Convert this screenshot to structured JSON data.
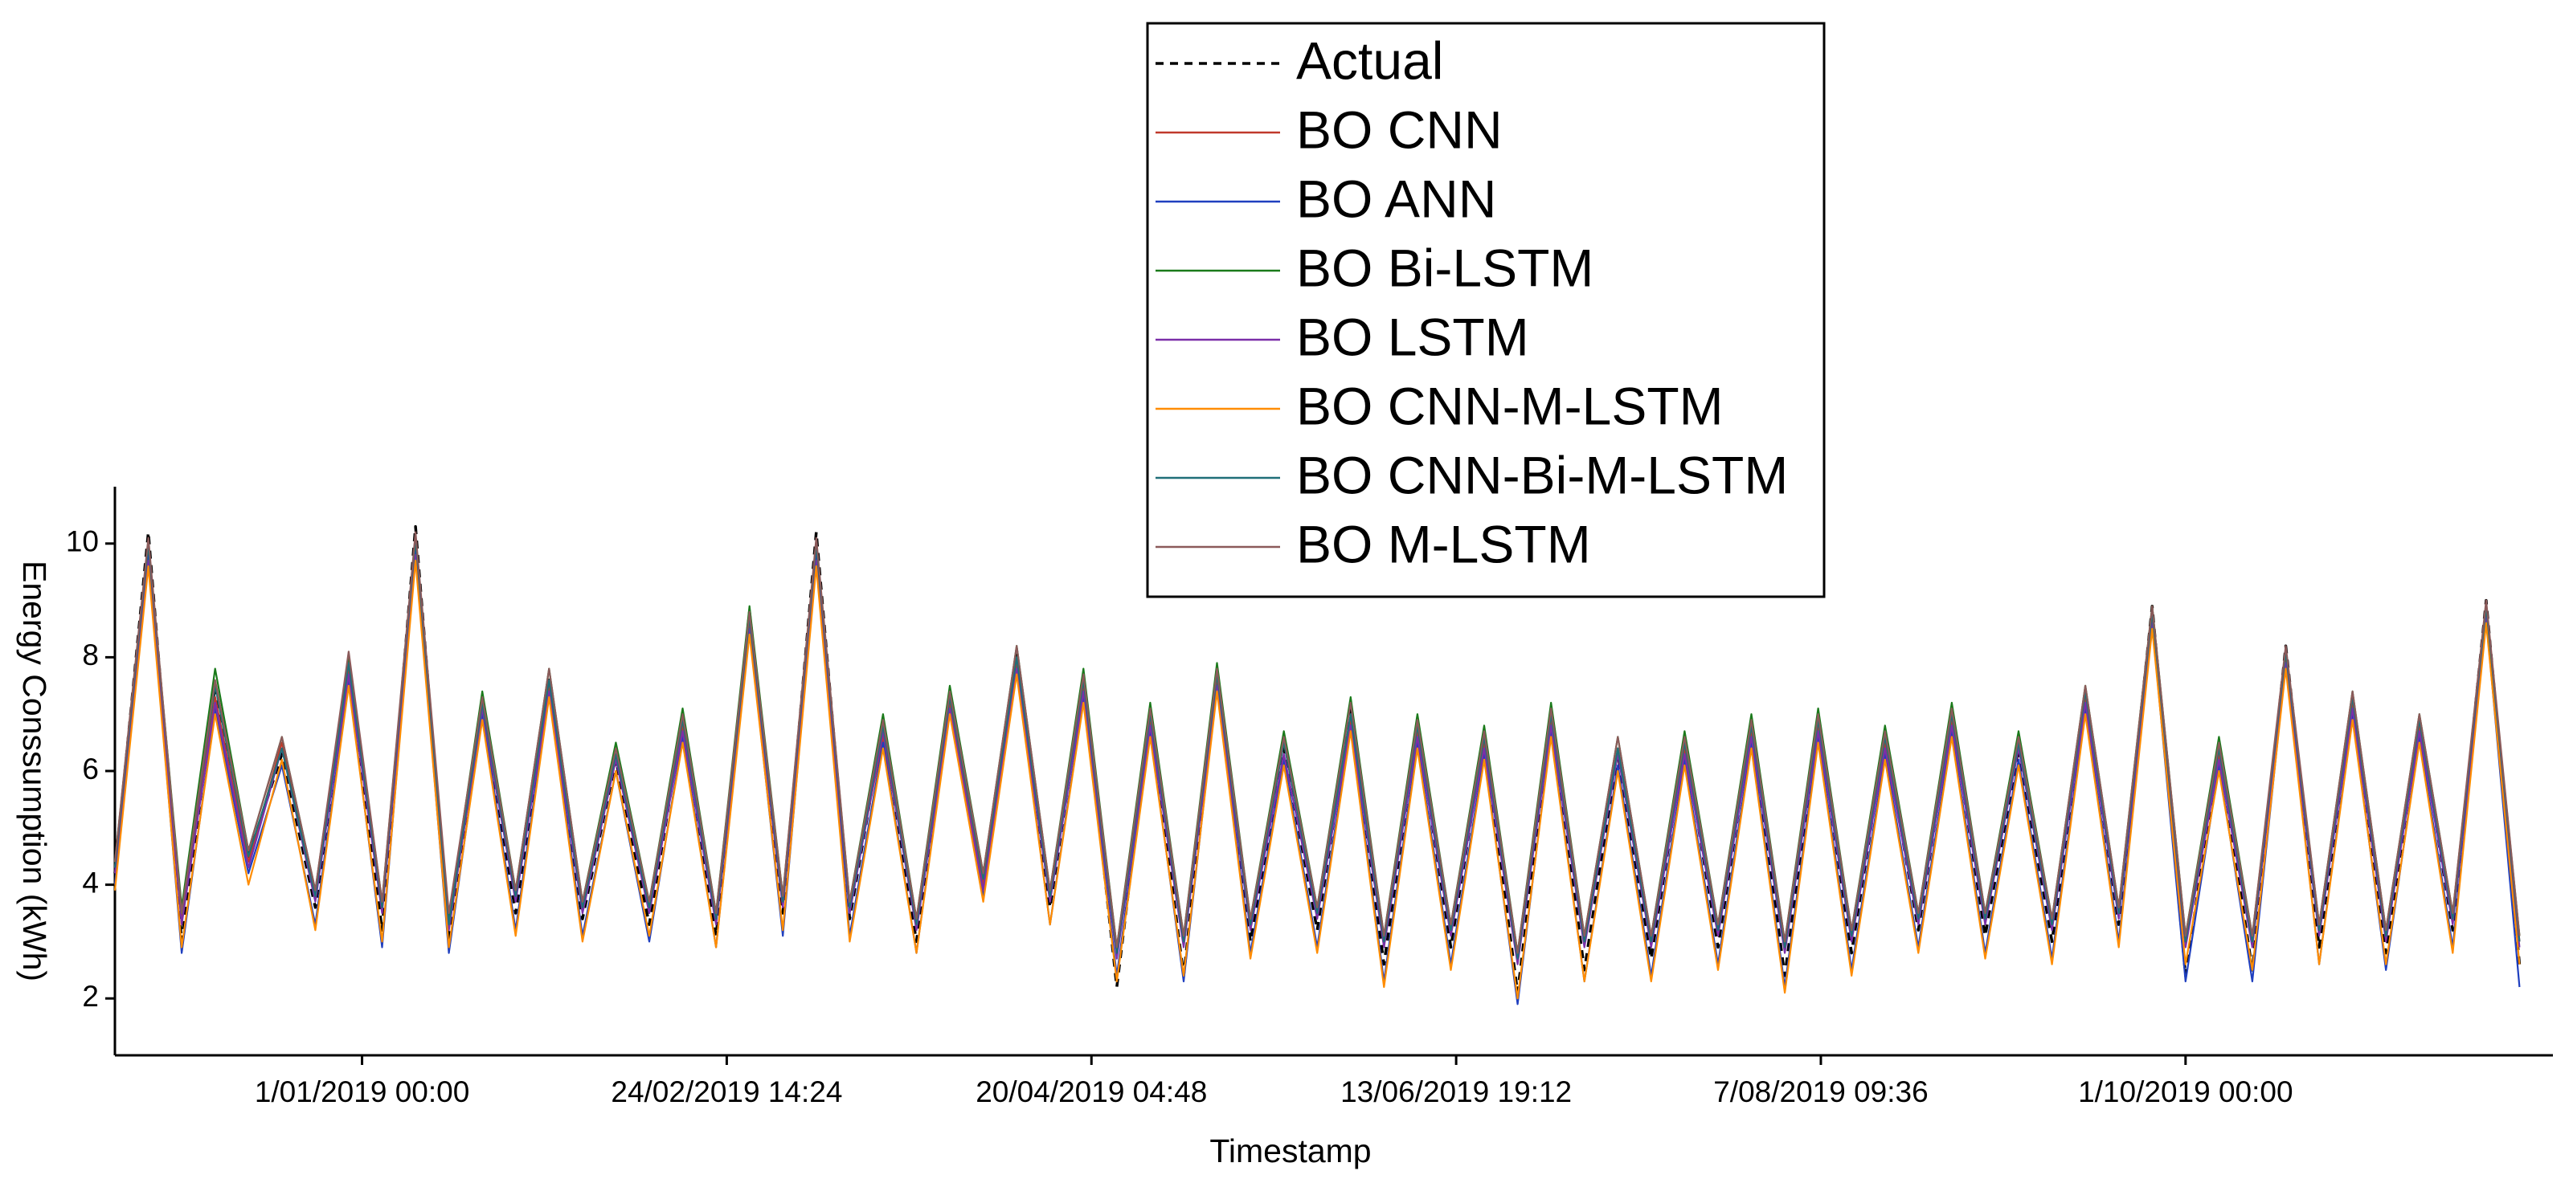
{
  "chart_data": {
    "type": "line",
    "x_label": "Timestamp",
    "y_label": "Energy Conssumption (kWh)",
    "x": [
      "2018-11-25",
      "2018-11-30",
      "2018-12-05",
      "2018-12-10",
      "2018-12-15",
      "2018-12-20",
      "2018-12-25",
      "2018-12-30",
      "2019-01-04",
      "2019-01-09",
      "2019-01-14",
      "2019-01-19",
      "2019-01-24",
      "2019-01-29",
      "2019-02-03",
      "2019-02-08",
      "2019-02-13",
      "2019-02-18",
      "2019-02-23",
      "2019-02-28",
      "2019-03-05",
      "2019-03-10",
      "2019-03-15",
      "2019-03-20",
      "2019-03-25",
      "2019-03-30",
      "2019-04-04",
      "2019-04-09",
      "2019-04-14",
      "2019-04-19",
      "2019-04-24",
      "2019-04-29",
      "2019-05-04",
      "2019-05-09",
      "2019-05-14",
      "2019-05-19",
      "2019-05-24",
      "2019-05-29",
      "2019-06-03",
      "2019-06-08",
      "2019-06-13",
      "2019-06-18",
      "2019-06-23",
      "2019-06-28",
      "2019-07-03",
      "2019-07-08",
      "2019-07-13",
      "2019-07-18",
      "2019-07-23",
      "2019-07-28",
      "2019-08-02",
      "2019-08-07",
      "2019-08-12",
      "2019-08-17",
      "2019-08-22",
      "2019-08-27",
      "2019-09-01",
      "2019-09-06",
      "2019-09-11",
      "2019-09-16",
      "2019-09-21",
      "2019-09-26",
      "2019-10-01",
      "2019-10-06",
      "2019-10-11",
      "2019-10-16",
      "2019-10-21",
      "2019-10-26",
      "2019-10-31",
      "2019-11-05",
      "2019-11-10",
      "2019-11-15",
      "2019-11-20"
    ],
    "xlim": [
      "2018-11-25T00:00",
      "2019-11-25T00:00"
    ],
    "xticks": [
      {
        "value": "2019-01-01T00:00",
        "label": "1/01/2019 00:00"
      },
      {
        "value": "2019-02-24T14:24",
        "label": "24/02/2019 14:24"
      },
      {
        "value": "2019-04-20T04:48",
        "label": "20/04/2019 04:48"
      },
      {
        "value": "2019-06-13T19:12",
        "label": "13/06/2019 19:12"
      },
      {
        "value": "2019-08-07T09:36",
        "label": "7/08/2019 09:36"
      },
      {
        "value": "2019-10-01T00:00",
        "label": "1/10/2019 00:00"
      }
    ],
    "ylim": [
      1,
      11
    ],
    "yticks": [
      2,
      4,
      6,
      8,
      10
    ],
    "legend": "top",
    "series": [
      {
        "name": "Actual",
        "color": "#000000",
        "dashed": true,
        "values": [
          4.2,
          10.2,
          3.0,
          7.5,
          4.5,
          6.3,
          3.6,
          7.9,
          3.2,
          10.3,
          3.0,
          7.2,
          3.5,
          7.6,
          3.4,
          6.2,
          3.3,
          6.9,
          3.1,
          8.8,
          3.5,
          10.2,
          3.4,
          6.8,
          3.0,
          7.3,
          4.1,
          8.1,
          3.6,
          7.6,
          2.2,
          7.0,
          2.4,
          7.8,
          3.0,
          6.4,
          3.2,
          7.1,
          2.6,
          6.8,
          2.9,
          6.6,
          2.1,
          7.0,
          2.5,
          6.3,
          2.7,
          6.5,
          2.9,
          6.8,
          2.4,
          6.9,
          2.8,
          6.6,
          3.2,
          7.0,
          3.1,
          6.4,
          3.0,
          7.4,
          3.3,
          8.9,
          2.4,
          6.4,
          2.5,
          8.2,
          2.9,
          7.3,
          2.8,
          6.9,
          3.2,
          9.0,
          2.6
        ]
      },
      {
        "name": "BO CNN",
        "color": "#c0392b",
        "values": [
          4.3,
          9.9,
          3.4,
          7.3,
          4.4,
          6.5,
          3.8,
          7.8,
          3.6,
          10.0,
          3.3,
          7.0,
          3.8,
          7.5,
          3.6,
          6.3,
          3.6,
          6.8,
          3.4,
          8.6,
          3.7,
          9.9,
          3.6,
          6.6,
          3.3,
          7.2,
          4.0,
          7.9,
          3.8,
          7.5,
          2.8,
          6.9,
          3.0,
          7.6,
          3.3,
          6.5,
          3.5,
          6.9,
          3.0,
          6.7,
          3.2,
          6.5,
          2.7,
          6.9,
          3.0,
          6.4,
          3.0,
          6.4,
          3.2,
          6.7,
          2.9,
          6.8,
          3.1,
          6.5,
          3.4,
          6.9,
          3.4,
          6.5,
          3.3,
          7.3,
          3.5,
          8.7,
          3.0,
          6.3,
          3.0,
          8.0,
          3.2,
          7.2,
          3.1,
          6.8,
          3.4,
          8.8,
          3.0
        ]
      },
      {
        "name": "BO ANN",
        "color": "#1f3fbf",
        "values": [
          4.0,
          9.8,
          2.8,
          7.1,
          4.2,
          6.1,
          3.3,
          7.6,
          2.9,
          9.9,
          2.8,
          7.0,
          3.2,
          7.4,
          3.1,
          6.0,
          3.0,
          6.6,
          2.9,
          8.5,
          3.1,
          9.8,
          3.1,
          6.5,
          2.8,
          7.1,
          3.8,
          7.8,
          3.3,
          7.3,
          2.4,
          6.7,
          2.3,
          7.5,
          2.8,
          6.2,
          2.9,
          6.8,
          2.3,
          6.5,
          2.6,
          6.3,
          1.9,
          6.7,
          2.3,
          6.1,
          2.4,
          6.2,
          2.6,
          6.5,
          2.2,
          6.6,
          2.5,
          6.3,
          2.9,
          6.7,
          2.8,
          6.2,
          2.7,
          7.1,
          3.0,
          8.6,
          2.3,
          6.1,
          2.3,
          7.9,
          2.6,
          7.0,
          2.5,
          6.6,
          2.9,
          8.7,
          2.2
        ]
      },
      {
        "name": "BO Bi-LSTM",
        "color": "#1a7a1a",
        "values": [
          4.4,
          10.0,
          3.6,
          7.8,
          4.6,
          6.6,
          3.9,
          8.0,
          3.7,
          10.1,
          3.4,
          7.4,
          3.9,
          7.8,
          3.7,
          6.5,
          3.7,
          7.1,
          3.5,
          8.9,
          3.8,
          10.0,
          3.7,
          7.0,
          3.4,
          7.5,
          4.2,
          8.2,
          3.9,
          7.8,
          2.9,
          7.2,
          3.1,
          7.9,
          3.4,
          6.7,
          3.6,
          7.3,
          3.1,
          7.0,
          3.3,
          6.8,
          2.8,
          7.2,
          3.1,
          6.6,
          3.1,
          6.7,
          3.3,
          7.0,
          3.0,
          7.1,
          3.2,
          6.8,
          3.5,
          7.2,
          3.5,
          6.7,
          3.4,
          7.5,
          3.6,
          8.9,
          3.1,
          6.6,
          3.1,
          8.1,
          3.3,
          7.4,
          3.2,
          7.0,
          3.5,
          8.9,
          3.1
        ]
      },
      {
        "name": "BO LSTM",
        "color": "#7b2fa8",
        "values": [
          4.2,
          9.7,
          3.3,
          7.2,
          4.3,
          6.4,
          3.7,
          7.7,
          3.5,
          9.8,
          3.2,
          7.1,
          3.7,
          7.4,
          3.5,
          6.2,
          3.5,
          6.7,
          3.3,
          8.5,
          3.6,
          9.7,
          3.5,
          6.7,
          3.2,
          7.1,
          3.9,
          7.8,
          3.7,
          7.4,
          2.7,
          6.8,
          2.9,
          7.5,
          3.2,
          6.3,
          3.4,
          6.8,
          2.9,
          6.6,
          3.1,
          6.4,
          2.6,
          6.8,
          2.9,
          6.3,
          2.9,
          6.3,
          3.1,
          6.6,
          2.8,
          6.7,
          3.0,
          6.4,
          3.3,
          6.8,
          3.3,
          6.4,
          3.2,
          7.2,
          3.4,
          8.6,
          2.9,
          6.2,
          2.9,
          7.9,
          3.1,
          7.1,
          3.0,
          6.7,
          3.3,
          8.7,
          2.9
        ]
      },
      {
        "name": "BO CNN-M-LSTM",
        "color": "#ff8c00",
        "values": [
          3.9,
          9.6,
          2.9,
          7.0,
          4.0,
          6.2,
          3.2,
          7.5,
          3.0,
          9.7,
          2.9,
          6.9,
          3.1,
          7.3,
          3.0,
          6.0,
          3.1,
          6.5,
          2.9,
          8.4,
          3.2,
          9.6,
          3.0,
          6.4,
          2.8,
          7.0,
          3.7,
          7.7,
          3.3,
          7.2,
          2.3,
          6.6,
          2.4,
          7.4,
          2.7,
          6.1,
          2.8,
          6.7,
          2.2,
          6.4,
          2.5,
          6.2,
          2.0,
          6.6,
          2.3,
          6.0,
          2.3,
          6.1,
          2.5,
          6.4,
          2.1,
          6.5,
          2.4,
          6.2,
          2.8,
          6.6,
          2.7,
          6.1,
          2.6,
          7.0,
          2.9,
          8.5,
          2.6,
          6.0,
          2.5,
          7.8,
          2.6,
          6.9,
          2.6,
          6.5,
          2.8,
          8.6,
          2.6
        ]
      },
      {
        "name": "BO CNN-Bi-M-LSTM",
        "color": "#1f6f78",
        "values": [
          4.3,
          10.0,
          3.5,
          7.5,
          4.5,
          6.4,
          3.8,
          7.9,
          3.6,
          10.1,
          3.3,
          7.2,
          3.8,
          7.6,
          3.6,
          6.3,
          3.6,
          6.9,
          3.4,
          8.7,
          3.7,
          10.0,
          3.6,
          6.8,
          3.3,
          7.3,
          4.1,
          8.0,
          3.8,
          7.6,
          2.8,
          7.0,
          3.0,
          7.7,
          3.3,
          6.5,
          3.5,
          7.0,
          3.0,
          6.8,
          3.2,
          6.6,
          2.7,
          7.0,
          3.0,
          6.4,
          3.0,
          6.5,
          3.2,
          6.8,
          2.9,
          6.9,
          3.1,
          6.6,
          3.4,
          7.0,
          3.4,
          6.5,
          3.3,
          7.4,
          3.5,
          8.8,
          3.0,
          6.4,
          3.0,
          8.1,
          3.2,
          7.3,
          3.1,
          6.9,
          3.4,
          8.9,
          3.0
        ]
      },
      {
        "name": "BO M-LSTM",
        "color": "#8b5a5a",
        "values": [
          4.4,
          10.1,
          3.5,
          7.6,
          4.6,
          6.6,
          3.9,
          8.1,
          3.7,
          10.2,
          3.5,
          7.3,
          3.9,
          7.8,
          3.7,
          6.4,
          3.7,
          7.0,
          3.5,
          8.8,
          3.8,
          10.1,
          3.7,
          6.9,
          3.4,
          7.4,
          4.2,
          8.2,
          3.9,
          7.7,
          2.9,
          7.1,
          3.1,
          7.8,
          3.4,
          6.6,
          3.6,
          7.2,
          3.1,
          6.9,
          3.3,
          6.7,
          2.8,
          7.1,
          3.1,
          6.6,
          3.1,
          6.6,
          3.3,
          6.9,
          3.0,
          7.0,
          3.2,
          6.7,
          3.5,
          7.1,
          3.5,
          6.6,
          3.4,
          7.5,
          3.6,
          8.9,
          3.1,
          6.5,
          3.1,
          8.2,
          3.3,
          7.4,
          3.2,
          7.0,
          3.5,
          9.0,
          3.1
        ]
      }
    ]
  }
}
